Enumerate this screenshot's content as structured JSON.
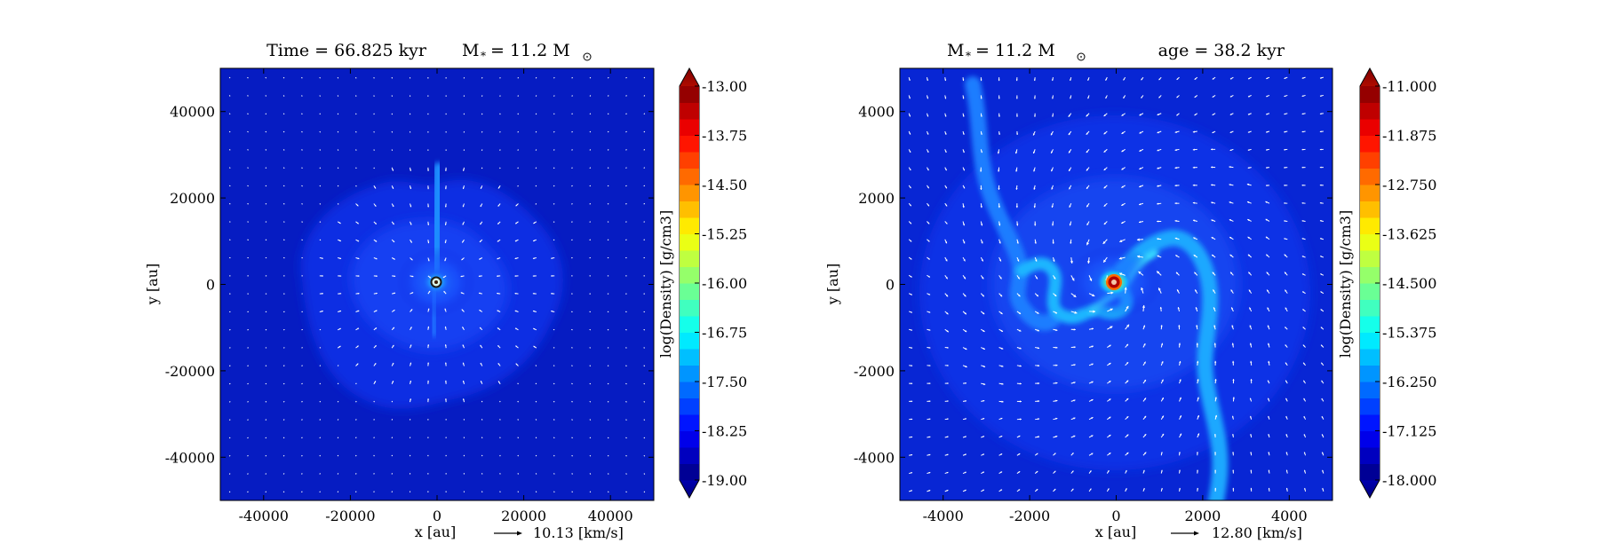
{
  "chart_data": [
    {
      "type": "heatmap",
      "title_left": "Time = 66.825 kyr",
      "title_right_symbol": "M",
      "title_right_sub": "*",
      "title_right_value": "= 11.2 M",
      "xlabel": "x [au]",
      "ylabel": "y [au]",
      "xlim": [
        -50000,
        50000
      ],
      "ylim": [
        -50000,
        50000
      ],
      "xticks": [
        -40000,
        -20000,
        0,
        20000,
        40000
      ],
      "yticks": [
        -40000,
        -20000,
        0,
        20000,
        40000
      ],
      "quiver_key_label": "10.13 [km/s]",
      "colorbar": {
        "label": "log(Density) [g/cm3]",
        "ticks": [
          "-13.00",
          "-13.75",
          "-14.50",
          "-15.25",
          "-16.00",
          "-16.75",
          "-17.50",
          "-18.25",
          "-19.00"
        ],
        "min": -19.0,
        "max": -13.0,
        "colormap": "jet"
      }
    },
    {
      "type": "heatmap",
      "title_left_symbol": "M",
      "title_left_sub": "*",
      "title_left_value": "= 11.2 M",
      "title_right": "age = 38.2 kyr",
      "xlabel": "x [au]",
      "ylabel": "y [au]",
      "xlim": [
        -5000,
        5000
      ],
      "ylim": [
        -5000,
        5000
      ],
      "xticks": [
        -4000,
        -2000,
        0,
        2000,
        4000
      ],
      "yticks": [
        -4000,
        -2000,
        0,
        2000,
        4000
      ],
      "quiver_key_label": "12.80 [km/s]",
      "colorbar": {
        "label": "log(Density) [g/cm3]",
        "ticks": [
          "-11.000",
          "-11.875",
          "-12.750",
          "-13.625",
          "-14.500",
          "-15.375",
          "-16.250",
          "-17.125",
          "-18.000"
        ],
        "min": -18.0,
        "max": -11.0,
        "colormap": "jet"
      }
    }
  ]
}
